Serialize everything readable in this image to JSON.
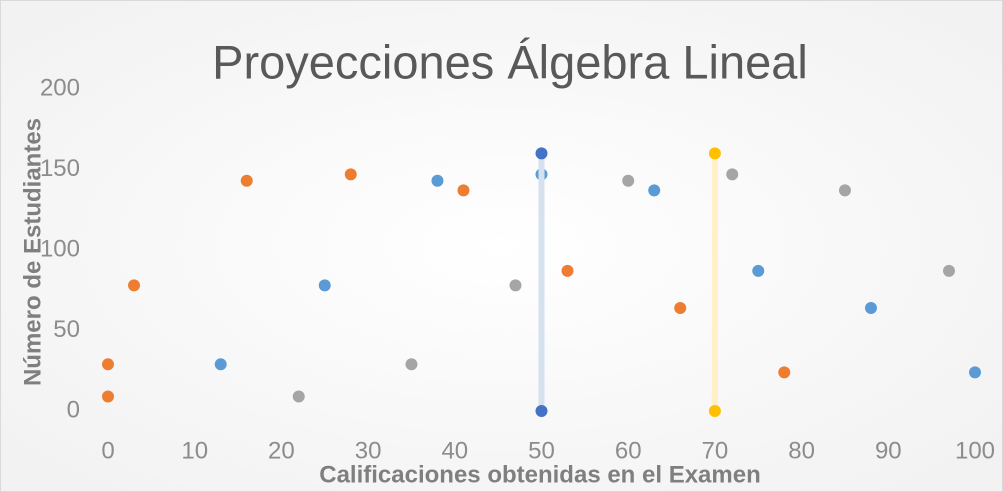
{
  "chart_data": {
    "type": "scatter",
    "title": "Proyecciones Álgebra Lineal",
    "x_label": "Calificaciones obtenidas en el Examen",
    "y_label": "Número de Estudiantes",
    "xlim": [
      0,
      100
    ],
    "xticks": [
      0,
      10,
      20,
      30,
      40,
      50,
      60,
      70,
      80,
      90,
      100
    ],
    "ylim": [
      0,
      200
    ],
    "yticks": [
      0,
      50,
      100,
      150,
      200
    ],
    "grid": false,
    "series": [
      {
        "color": "#ed7d31",
        "x": [
          0,
          0,
          3,
          16,
          28,
          41,
          53,
          66,
          78
        ],
        "values": [
          9,
          29,
          78,
          143,
          147,
          137,
          87,
          64,
          24
        ]
      },
      {
        "color": "#5b9bd5",
        "x": [
          13,
          25,
          38,
          50,
          63,
          75,
          88,
          100
        ],
        "values": [
          29,
          78,
          143,
          147,
          137,
          87,
          64,
          24
        ]
      },
      {
        "color": "#a5a5a5",
        "x": [
          22,
          35,
          47,
          60,
          72,
          85,
          97
        ],
        "values": [
          9,
          29,
          78,
          143,
          147,
          137,
          87
        ]
      },
      {
        "color": "#4472c4",
        "line_color": "#d6e1f0",
        "x": [
          50,
          50
        ],
        "values": [
          0,
          160
        ]
      },
      {
        "color": "#ffc000",
        "line_color": "#fff0c7",
        "x": [
          70,
          70
        ],
        "values": [
          0,
          160
        ]
      }
    ]
  }
}
